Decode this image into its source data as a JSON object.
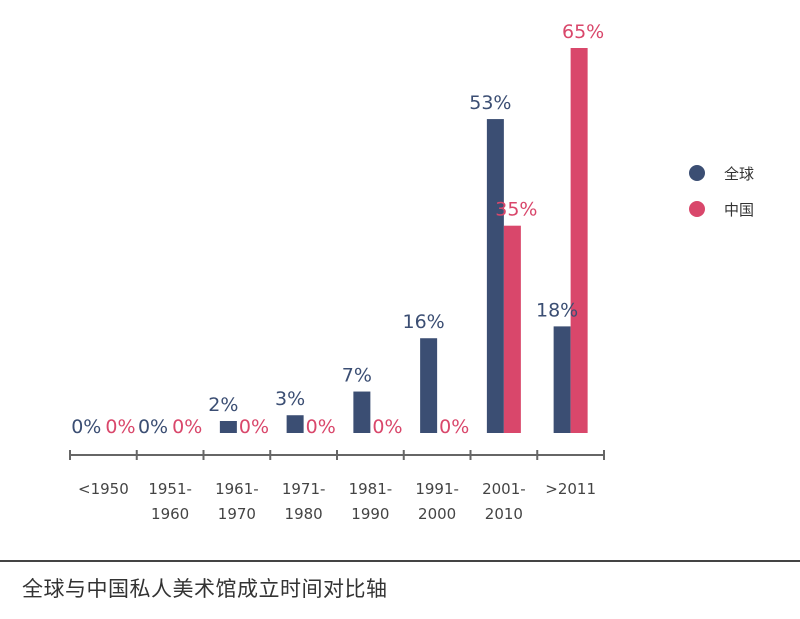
{
  "chart_data": {
    "type": "bar",
    "title": "全球与中国私人美术馆成立时间对比轴",
    "categories": [
      [
        "<1950"
      ],
      [
        "1951-",
        "1960"
      ],
      [
        "1961-",
        "1970"
      ],
      [
        "1971-",
        "1980"
      ],
      [
        "1981-",
        "1990"
      ],
      [
        "1991-",
        "2000"
      ],
      [
        "2001-",
        "2010"
      ],
      [
        ">2011"
      ]
    ],
    "series": [
      {
        "name": "全球",
        "color": "#3b4e73",
        "values": [
          0,
          0,
          2,
          3,
          7,
          16,
          53,
          18
        ],
        "labels": [
          "0%",
          "0%",
          "2%",
          "3%",
          "7%",
          "16%",
          "53%",
          "18%"
        ]
      },
      {
        "name": "中国",
        "color": "#d9476b",
        "values": [
          0,
          0,
          0,
          0,
          0,
          0,
          35,
          65
        ],
        "labels": [
          "0%",
          "0%",
          "0%",
          "0%",
          "0%",
          "0%",
          "35%",
          "65%"
        ]
      }
    ],
    "ylim": [
      0,
      65
    ],
    "legend_position": "right"
  },
  "caption": "全球与中国私人美术馆成立时间对比轴"
}
